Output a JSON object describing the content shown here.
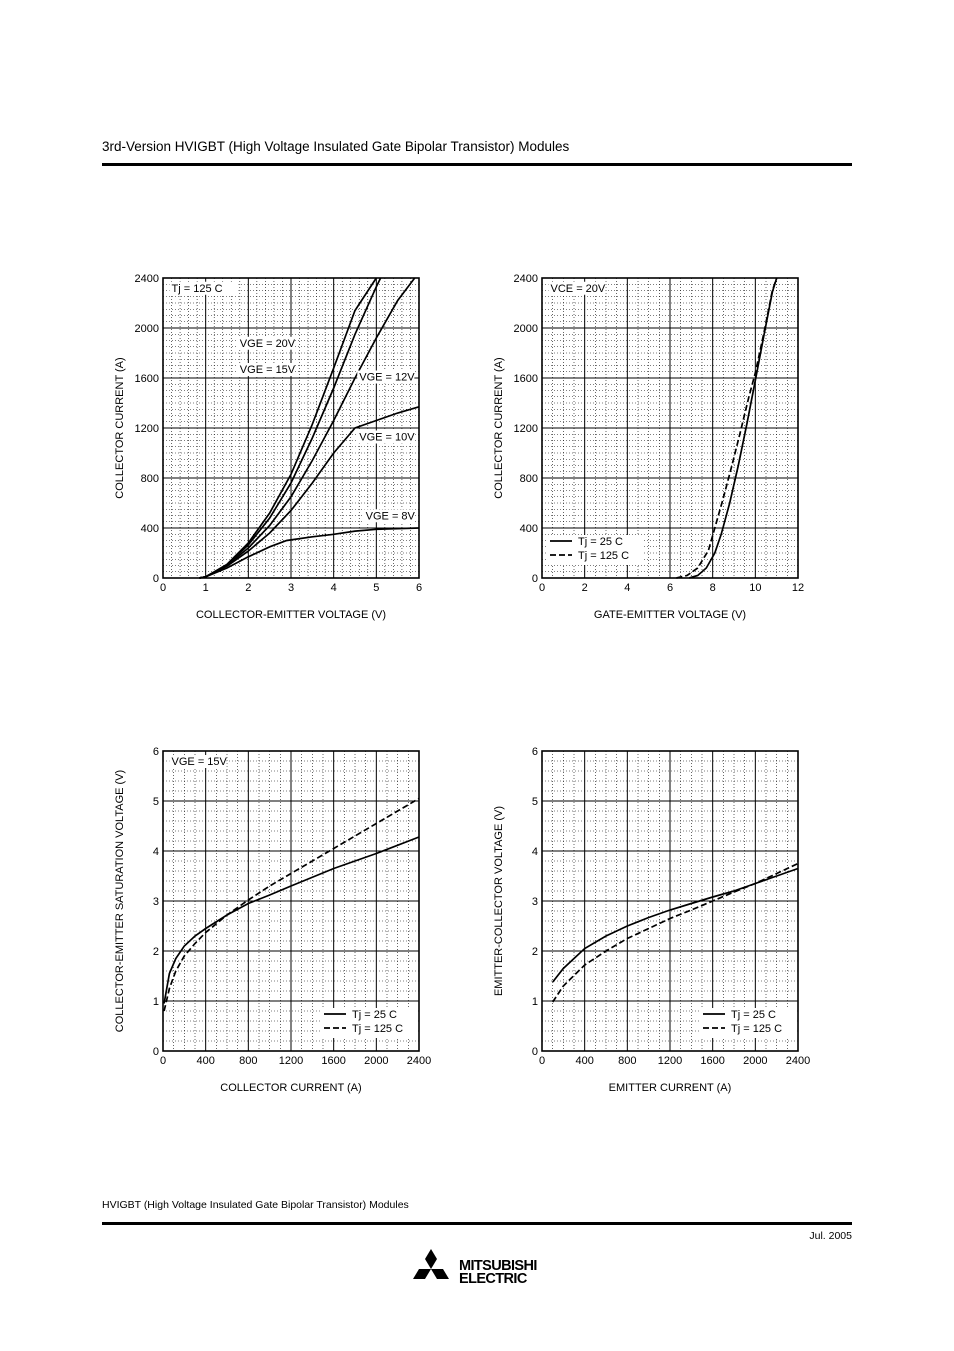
{
  "header": {
    "title": "3rd-Version HVIGBT (High Voltage Insulated Gate Bipolar Transistor) Modules"
  },
  "footer": {
    "text": "HVIGBT (High Voltage Insulated Gate Bipolar Transistor) Modules",
    "date": "Jul.  2005"
  },
  "logo": {
    "line1": "MITSUBISHI",
    "line2": "ELECTRIC"
  },
  "chart_data": [
    {
      "type": "line",
      "xlabel": "COLLECTOR-EMITTER VOLTAGE (V)",
      "ylabel": "COLLECTOR CURRENT (A)",
      "xlim": [
        0,
        6
      ],
      "ylim": [
        0,
        2400
      ],
      "xticks": [
        0,
        1,
        2,
        3,
        4,
        5,
        6
      ],
      "yticks": [
        0,
        400,
        800,
        1200,
        1600,
        2000,
        2400
      ],
      "grid": true,
      "annotations": [
        {
          "text": "Tj = 125  C",
          "x": 0.2,
          "y": 2290
        },
        {
          "text": "VGE = 20V",
          "x": 1.8,
          "y": 1850
        },
        {
          "text": "VGE = 15V",
          "x": 1.8,
          "y": 1640
        },
        {
          "text": "VGE = 12V",
          "x": 4.6,
          "y": 1580
        },
        {
          "text": "VGE = 10V",
          "x": 4.6,
          "y": 1100
        },
        {
          "text": "VGE = 8V",
          "x": 4.75,
          "y": 470
        }
      ],
      "series": [
        {
          "name": "VGE = 20V",
          "dash": false,
          "x": [
            0.85,
            1.0,
            1.5,
            2.0,
            2.5,
            3.0,
            3.5,
            4.0,
            4.5,
            5.0
          ],
          "y": [
            0,
            10,
            110,
            280,
            520,
            830,
            1230,
            1680,
            2140,
            2400
          ]
        },
        {
          "name": "VGE = 15V",
          "dash": false,
          "x": [
            0.85,
            1.0,
            1.5,
            2.0,
            2.5,
            3.0,
            3.5,
            4.0,
            4.5,
            5.0,
            5.1
          ],
          "y": [
            0,
            10,
            105,
            265,
            480,
            760,
            1120,
            1520,
            1950,
            2330,
            2400
          ]
        },
        {
          "name": "VGE = 12V",
          "dash": false,
          "x": [
            0.85,
            1.0,
            1.5,
            2.0,
            2.5,
            3.0,
            3.5,
            4.0,
            4.5,
            5.0,
            5.5,
            5.9
          ],
          "y": [
            0,
            10,
            100,
            240,
            420,
            650,
            940,
            1260,
            1600,
            1920,
            2220,
            2400
          ]
        },
        {
          "name": "VGE = 10V",
          "dash": false,
          "x": [
            0.85,
            1.0,
            1.5,
            2.0,
            2.5,
            3.0,
            3.5,
            4.0,
            4.5,
            5.0,
            5.5,
            6.0
          ],
          "y": [
            0,
            10,
            95,
            215,
            360,
            540,
            760,
            1000,
            1200,
            1260,
            1320,
            1370
          ]
        },
        {
          "name": "VGE = 8V",
          "dash": false,
          "x": [
            0.85,
            1.0,
            1.5,
            2.0,
            2.5,
            2.9,
            3.5,
            4.0,
            4.5,
            5.0,
            5.5,
            6.0
          ],
          "y": [
            0,
            10,
            80,
            170,
            250,
            300,
            330,
            350,
            375,
            390,
            395,
            400
          ]
        }
      ]
    },
    {
      "type": "line",
      "xlabel": "GATE-EMITTER VOLTAGE (V)",
      "ylabel": "COLLECTOR CURRENT (A)",
      "xlim": [
        0,
        12
      ],
      "ylim": [
        0,
        2400
      ],
      "xticks": [
        0,
        2,
        4,
        6,
        8,
        10,
        12
      ],
      "yticks": [
        0,
        400,
        800,
        1200,
        1600,
        2000,
        2400
      ],
      "grid": true,
      "annotations": [
        {
          "text": "VCE = 20V",
          "x": 0.4,
          "y": 2290
        }
      ],
      "legend": [
        "Tj = 25  C",
        "Tj = 125  C"
      ],
      "series": [
        {
          "name": "Tj = 25  C",
          "dash": false,
          "x": [
            6.9,
            7.3,
            7.7,
            8.1,
            8.4,
            8.8,
            9.2,
            9.6,
            10.0,
            10.4,
            10.8,
            11.0
          ],
          "y": [
            0,
            20,
            80,
            200,
            350,
            600,
            900,
            1230,
            1580,
            1940,
            2290,
            2400
          ]
        },
        {
          "name": "Tj = 125  C",
          "dash": true,
          "x": [
            6.3,
            6.8,
            7.3,
            7.8,
            8.1,
            8.5,
            8.9,
            9.3,
            9.7,
            10.0,
            10.4,
            10.8,
            11.0
          ],
          "y": [
            0,
            20,
            80,
            220,
            400,
            640,
            900,
            1170,
            1450,
            1640,
            1960,
            2300,
            2400
          ]
        }
      ]
    },
    {
      "type": "line",
      "xlabel": "COLLECTOR CURRENT (A)",
      "ylabel": "COLLECTOR-EMITTER SATURATION VOLTAGE (V)",
      "xlim": [
        0,
        2400
      ],
      "ylim": [
        0,
        6
      ],
      "xticks": [
        0,
        400,
        800,
        1200,
        1600,
        2000,
        2400
      ],
      "yticks": [
        0,
        1,
        2,
        3,
        4,
        5,
        6
      ],
      "grid": true,
      "annotations": [
        {
          "text": "VGE = 15V",
          "x": 80,
          "y": 5.72
        }
      ],
      "legend": [
        "Tj = 25  C",
        "Tj = 125  C"
      ],
      "series": [
        {
          "name": "Tj = 25  C",
          "dash": false,
          "x": [
            10,
            60,
            120,
            200,
            300,
            400,
            600,
            800,
            1000,
            1200,
            1600,
            2000,
            2400
          ],
          "y": [
            0.95,
            1.55,
            1.85,
            2.1,
            2.3,
            2.45,
            2.72,
            2.95,
            3.12,
            3.3,
            3.65,
            3.95,
            4.28
          ]
        },
        {
          "name": "Tj = 125  C",
          "dash": true,
          "x": [
            10,
            60,
            120,
            200,
            300,
            400,
            600,
            800,
            1000,
            1200,
            1600,
            2000,
            2400
          ],
          "y": [
            0.8,
            1.25,
            1.6,
            1.9,
            2.15,
            2.37,
            2.72,
            3.02,
            3.3,
            3.55,
            4.05,
            4.55,
            5.05
          ]
        }
      ]
    },
    {
      "type": "line",
      "xlabel": "EMITTER CURRENT (A)",
      "ylabel": "EMITTER-COLLECTOR VOLTAGE (V)",
      "xlim": [
        0,
        2400
      ],
      "ylim": [
        0,
        6
      ],
      "xticks": [
        0,
        400,
        800,
        1200,
        1600,
        2000,
        2400
      ],
      "yticks": [
        0,
        1,
        2,
        3,
        4,
        5,
        6
      ],
      "grid": true,
      "legend": [
        "Tj = 25  C",
        "Tj = 125  C"
      ],
      "series": [
        {
          "name": "Tj = 25  C",
          "dash": false,
          "x": [
            100,
            200,
            400,
            600,
            800,
            1000,
            1200,
            1400,
            1600,
            1800,
            2000,
            2200,
            2400
          ],
          "y": [
            1.38,
            1.65,
            2.05,
            2.3,
            2.5,
            2.67,
            2.82,
            2.95,
            3.08,
            3.2,
            3.35,
            3.5,
            3.65
          ]
        },
        {
          "name": "Tj = 125  C",
          "dash": true,
          "x": [
            100,
            200,
            400,
            600,
            800,
            1000,
            1200,
            1400,
            1600,
            1800,
            2000,
            2200,
            2400
          ],
          "y": [
            0.98,
            1.3,
            1.72,
            2.0,
            2.25,
            2.45,
            2.65,
            2.82,
            3.0,
            3.18,
            3.35,
            3.55,
            3.75
          ]
        }
      ]
    }
  ]
}
